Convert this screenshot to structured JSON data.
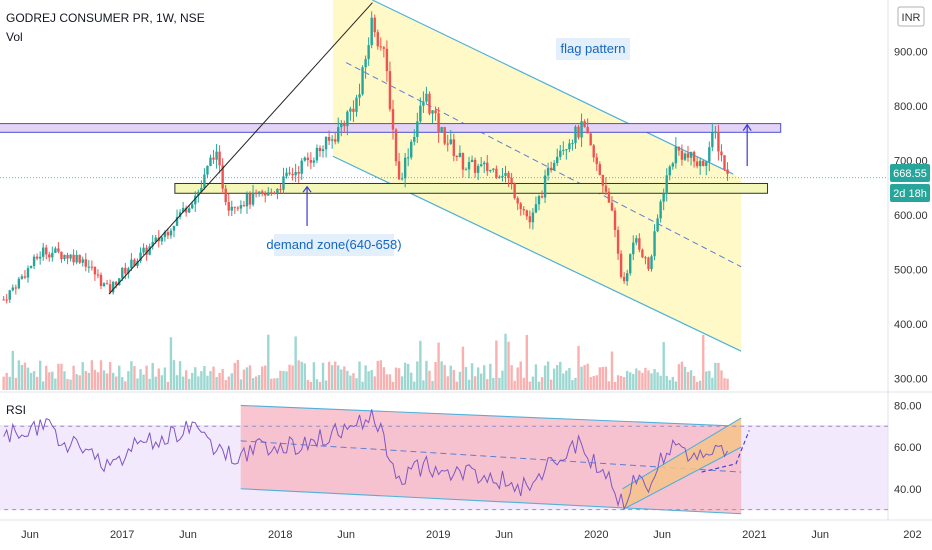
{
  "header": {
    "ticker": "GODREJ CONSUMER PR, 1W, NSE",
    "volume_label": "Vol",
    "currency_button": "INR"
  },
  "price_tag": {
    "value": "668.55",
    "countdown": "2d 18h",
    "color": "#26a69a"
  },
  "annotations": {
    "flag": "flag pattern",
    "demand": "demand zone(640-658)"
  },
  "rsi_panel": {
    "label": "RSI",
    "ticks": [
      "80.00",
      "60.00",
      "40.00"
    ]
  },
  "chart_data": {
    "type": "candlestick",
    "price_axis": {
      "ticks": [
        "900.00",
        "800.00",
        "700.00",
        "600.00",
        "500.00",
        "400.00",
        "300.00"
      ],
      "ylim": [
        275,
        995
      ]
    },
    "time_axis": {
      "ticks": [
        "Jun",
        "2017",
        "Jun",
        "2018",
        "Jun",
        "2019",
        "Jun",
        "2020",
        "Jun",
        "2021",
        "Jun",
        "202"
      ]
    },
    "price_path": [
      [
        "2016-04",
        445
      ],
      [
        "2016-07",
        535
      ],
      [
        "2016-10",
        520
      ],
      [
        "2016-12",
        460
      ],
      [
        "2017-01",
        495
      ],
      [
        "2017-04",
        560
      ],
      [
        "2017-07",
        650
      ],
      [
        "2017-08",
        720
      ],
      [
        "2017-09",
        620
      ],
      [
        "2017-12",
        635
      ],
      [
        "2018-03",
        700
      ],
      [
        "2018-05",
        740
      ],
      [
        "2018-07",
        820
      ],
      [
        "2018-08",
        960
      ],
      [
        "2018-09",
        880
      ],
      [
        "2018-10",
        660
      ],
      [
        "2018-12",
        820
      ],
      [
        "2019-01",
        760
      ],
      [
        "2019-03",
        690
      ],
      [
        "2019-06",
        680
      ],
      [
        "2019-08",
        585
      ],
      [
        "2019-10",
        720
      ],
      [
        "2019-12",
        760
      ],
      [
        "2020-01",
        690
      ],
      [
        "2020-02",
        630
      ],
      [
        "2020-03",
        470
      ],
      [
        "2020-04",
        560
      ],
      [
        "2020-05",
        500
      ],
      [
        "2020-06",
        640
      ],
      [
        "2020-07",
        720
      ],
      [
        "2020-09",
        690
      ],
      [
        "2020-10",
        750
      ],
      [
        "2020-11",
        668.55
      ]
    ],
    "levels": {
      "supply_zone": [
        752,
        768
      ],
      "demand_zone": [
        640,
        658
      ]
    },
    "flag_channel": {
      "upper": [
        [
          "2018-08",
          995
        ],
        [
          "2020-12",
          668
        ]
      ],
      "lower": [
        [
          "2018-05",
          708
        ],
        [
          "2020-12",
          350
        ]
      ]
    },
    "rsi_path": [
      [
        "2016-04",
        65
      ],
      [
        "2016-07",
        70
      ],
      [
        "2016-10",
        58
      ],
      [
        "2016-12",
        52
      ],
      [
        "2017-02",
        60
      ],
      [
        "2017-04",
        65
      ],
      [
        "2017-07",
        70
      ],
      [
        "2017-08",
        60
      ],
      [
        "2017-09",
        56
      ],
      [
        "2017-12",
        60
      ],
      [
        "2018-03",
        62
      ],
      [
        "2018-05",
        66
      ],
      [
        "2018-07",
        72
      ],
      [
        "2018-08",
        78
      ],
      [
        "2018-09",
        60
      ],
      [
        "2018-10",
        45
      ],
      [
        "2018-12",
        52
      ],
      [
        "2019-01",
        46
      ],
      [
        "2019-03",
        48
      ],
      [
        "2019-06",
        44
      ],
      [
        "2019-08",
        40
      ],
      [
        "2019-10",
        55
      ],
      [
        "2019-12",
        62
      ],
      [
        "2020-01",
        50
      ],
      [
        "2020-02",
        45
      ],
      [
        "2020-03",
        32
      ],
      [
        "2020-04",
        44
      ],
      [
        "2020-05",
        42
      ],
      [
        "2020-06",
        55
      ],
      [
        "2020-07",
        60
      ],
      [
        "2020-09",
        56
      ],
      [
        "2020-10",
        62
      ],
      [
        "2020-11",
        55
      ]
    ],
    "rsi_ylim": [
      25,
      85
    ],
    "grid": false,
    "legend": "none"
  }
}
